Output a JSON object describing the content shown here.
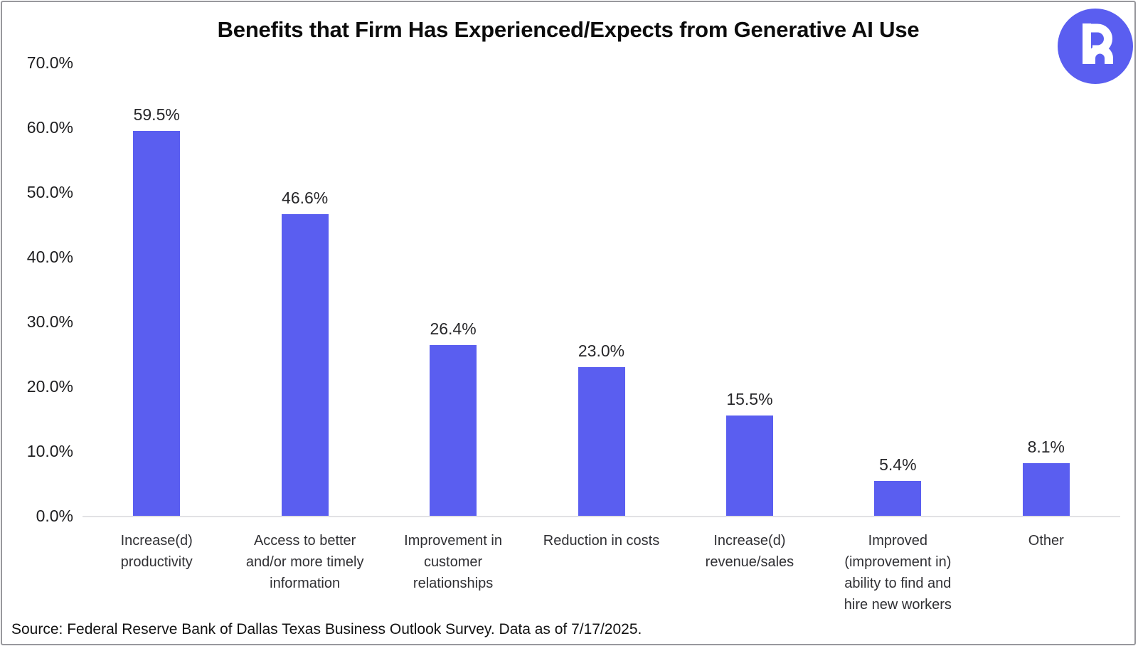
{
  "header": {
    "logo": {
      "name": "rho-logo",
      "background": "#5a5ef0",
      "glyph_color": "#ffffff"
    }
  },
  "chart_data": {
    "type": "bar",
    "title": "Benefits that Firm Has Experienced/Expects from Generative AI Use",
    "categories": [
      [
        "Increase(d)",
        "productivity"
      ],
      [
        "Access to better",
        "and/or more timely",
        "information"
      ],
      [
        "Improvement in",
        "customer",
        "relationships"
      ],
      [
        "Reduction in costs"
      ],
      [
        "Increase(d)",
        "revenue/sales"
      ],
      [
        "Improved",
        "(improvement in)",
        "ability to find and",
        "hire new workers"
      ],
      [
        "Other"
      ]
    ],
    "values": [
      59.5,
      46.6,
      26.4,
      23.0,
      15.5,
      5.4,
      8.1
    ],
    "value_labels": [
      "59.5%",
      "46.6%",
      "26.4%",
      "23.0%",
      "15.5%",
      "5.4%",
      "8.1%"
    ],
    "yticks": {
      "values": [
        0,
        10,
        20,
        30,
        40,
        50,
        60,
        70
      ],
      "labels": [
        "0.0%",
        "10.0%",
        "20.0%",
        "30.0%",
        "40.0%",
        "50.0%",
        "60.0%",
        "70.0%"
      ]
    },
    "ylim": [
      0,
      70
    ],
    "xlabel": "",
    "ylabel": "",
    "grid": false,
    "legend": "none",
    "bar_color": "#5a5ef0",
    "axis_line_color": "#e2e2e4"
  },
  "footer": {
    "source": "Source: Federal Reserve Bank of Dallas Texas Business Outlook Survey. Data as of 7/17/2025."
  }
}
